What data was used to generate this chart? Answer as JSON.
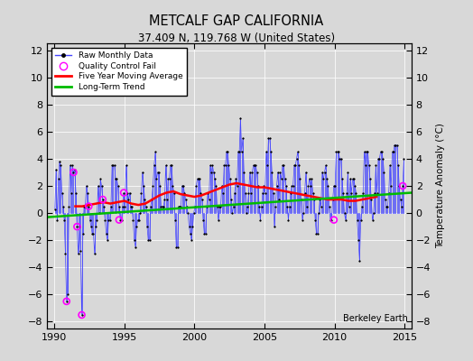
{
  "title": "METCALF GAP CALIFORNIA",
  "subtitle": "37.409 N, 119.768 W (United States)",
  "credit": "Berkeley Earth",
  "ylabel": "Temperature Anomaly (°C)",
  "xlim": [
    1989.5,
    2015.5
  ],
  "ylim": [
    -8.5,
    12.5
  ],
  "yticks": [
    -8,
    -6,
    -4,
    -2,
    0,
    2,
    4,
    6,
    8,
    10,
    12
  ],
  "xticks": [
    1990,
    1995,
    2000,
    2005,
    2010,
    2015
  ],
  "background_color": "#d8d8d8",
  "plot_background": "#d8d8d8",
  "raw_color": "#4444ff",
  "moving_avg_color": "#ff0000",
  "trend_color": "#00bb00",
  "qc_fail_color": "#ff00ff",
  "raw_data": {
    "years": [
      1990.042,
      1990.125,
      1990.208,
      1990.292,
      1990.375,
      1990.458,
      1990.542,
      1990.625,
      1990.708,
      1990.792,
      1990.875,
      1990.958,
      1991.042,
      1991.125,
      1991.208,
      1991.292,
      1991.375,
      1991.458,
      1991.542,
      1991.625,
      1991.708,
      1991.792,
      1991.875,
      1991.958,
      1992.042,
      1992.125,
      1992.208,
      1992.292,
      1992.375,
      1992.458,
      1992.542,
      1992.625,
      1992.708,
      1992.792,
      1992.875,
      1992.958,
      1993.042,
      1993.125,
      1993.208,
      1993.292,
      1993.375,
      1993.458,
      1993.542,
      1993.625,
      1993.708,
      1993.792,
      1993.875,
      1993.958,
      1994.042,
      1994.125,
      1994.208,
      1994.292,
      1994.375,
      1994.458,
      1994.542,
      1994.625,
      1994.708,
      1994.792,
      1994.875,
      1994.958,
      1995.042,
      1995.125,
      1995.208,
      1995.292,
      1995.375,
      1995.458,
      1995.542,
      1995.625,
      1995.708,
      1995.792,
      1995.875,
      1995.958,
      1996.042,
      1996.125,
      1996.208,
      1996.292,
      1996.375,
      1996.458,
      1996.542,
      1996.625,
      1996.708,
      1996.792,
      1996.875,
      1996.958,
      1997.042,
      1997.125,
      1997.208,
      1997.292,
      1997.375,
      1997.458,
      1997.542,
      1997.625,
      1997.708,
      1997.792,
      1997.875,
      1997.958,
      1998.042,
      1998.125,
      1998.208,
      1998.292,
      1998.375,
      1998.458,
      1998.542,
      1998.625,
      1998.708,
      1998.792,
      1998.875,
      1998.958,
      1999.042,
      1999.125,
      1999.208,
      1999.292,
      1999.375,
      1999.458,
      1999.542,
      1999.625,
      1999.708,
      1999.792,
      1999.875,
      1999.958,
      2000.042,
      2000.125,
      2000.208,
      2000.292,
      2000.375,
      2000.458,
      2000.542,
      2000.625,
      2000.708,
      2000.792,
      2000.875,
      2000.958,
      2001.042,
      2001.125,
      2001.208,
      2001.292,
      2001.375,
      2001.458,
      2001.542,
      2001.625,
      2001.708,
      2001.792,
      2001.875,
      2001.958,
      2002.042,
      2002.125,
      2002.208,
      2002.292,
      2002.375,
      2002.458,
      2002.542,
      2002.625,
      2002.708,
      2002.792,
      2002.875,
      2002.958,
      2003.042,
      2003.125,
      2003.208,
      2003.292,
      2003.375,
      2003.458,
      2003.542,
      2003.625,
      2003.708,
      2003.792,
      2003.875,
      2003.958,
      2004.042,
      2004.125,
      2004.208,
      2004.292,
      2004.375,
      2004.458,
      2004.542,
      2004.625,
      2004.708,
      2004.792,
      2004.875,
      2004.958,
      2005.042,
      2005.125,
      2005.208,
      2005.292,
      2005.375,
      2005.458,
      2005.542,
      2005.625,
      2005.708,
      2005.792,
      2005.875,
      2005.958,
      2006.042,
      2006.125,
      2006.208,
      2006.292,
      2006.375,
      2006.458,
      2006.542,
      2006.625,
      2006.708,
      2006.792,
      2006.875,
      2006.958,
      2007.042,
      2007.125,
      2007.208,
      2007.292,
      2007.375,
      2007.458,
      2007.542,
      2007.625,
      2007.708,
      2007.792,
      2007.875,
      2007.958,
      2008.042,
      2008.125,
      2008.208,
      2008.292,
      2008.375,
      2008.458,
      2008.542,
      2008.625,
      2008.708,
      2008.792,
      2008.875,
      2008.958,
      2009.042,
      2009.125,
      2009.208,
      2009.292,
      2009.375,
      2009.458,
      2009.542,
      2009.625,
      2009.708,
      2009.792,
      2009.875,
      2009.958,
      2010.042,
      2010.125,
      2010.208,
      2010.292,
      2010.375,
      2010.458,
      2010.542,
      2010.625,
      2010.708,
      2010.792,
      2010.875,
      2010.958,
      2011.042,
      2011.125,
      2011.208,
      2011.292,
      2011.375,
      2011.458,
      2011.542,
      2011.625,
      2011.708,
      2011.792,
      2011.875,
      2011.958,
      2012.042,
      2012.125,
      2012.208,
      2012.292,
      2012.375,
      2012.458,
      2012.542,
      2012.625,
      2012.708,
      2012.792,
      2012.875,
      2012.958,
      2013.042,
      2013.125,
      2013.208,
      2013.292,
      2013.375,
      2013.458,
      2013.542,
      2013.625,
      2013.708,
      2013.792,
      2013.875,
      2013.958,
      2014.042,
      2014.125,
      2014.208,
      2014.292,
      2014.375,
      2014.458,
      2014.542,
      2014.625,
      2014.708,
      2014.792,
      2014.875,
      2014.958
    ],
    "values": [
      0.3,
      3.2,
      -0.5,
      2.5,
      3.8,
      3.5,
      1.5,
      0.5,
      -0.5,
      -3.0,
      -6.5,
      -6.0,
      0.5,
      3.5,
      1.5,
      3.5,
      3.0,
      3.2,
      1.5,
      -1.0,
      -3.0,
      -1.0,
      -2.8,
      -7.5,
      -1.5,
      0.5,
      0.5,
      2.0,
      1.5,
      0.5,
      -0.5,
      -1.0,
      -1.5,
      -1.5,
      -3.0,
      -1.0,
      -0.5,
      2.0,
      0.0,
      2.5,
      2.0,
      1.0,
      0.5,
      -0.5,
      -1.5,
      -2.0,
      -0.5,
      -0.5,
      0.5,
      3.5,
      3.5,
      3.5,
      2.5,
      2.5,
      2.0,
      0.5,
      -0.5,
      -0.5,
      0.5,
      1.5,
      0.5,
      3.5,
      1.5,
      1.0,
      1.5,
      0.5,
      0.5,
      -0.5,
      -2.0,
      -2.5,
      -1.0,
      -0.5,
      -0.5,
      0.0,
      1.5,
      3.0,
      2.0,
      1.0,
      0.5,
      -1.0,
      -2.0,
      -2.0,
      0.5,
      1.0,
      2.0,
      3.5,
      4.5,
      2.5,
      3.0,
      3.0,
      2.0,
      0.5,
      0.5,
      0.5,
      1.0,
      3.5,
      1.0,
      2.5,
      2.5,
      3.5,
      3.5,
      2.0,
      1.5,
      -0.5,
      -2.5,
      -2.5,
      0.5,
      0.5,
      0.5,
      2.0,
      2.0,
      1.5,
      1.0,
      0.5,
      0.0,
      -1.0,
      -1.5,
      -2.0,
      -1.0,
      0.0,
      0.5,
      2.0,
      2.5,
      2.5,
      2.5,
      1.5,
      1.0,
      -0.5,
      -1.5,
      -1.5,
      0.5,
      1.5,
      1.0,
      3.5,
      3.0,
      3.5,
      3.0,
      2.5,
      2.0,
      0.5,
      -0.5,
      0.5,
      0.5,
      2.0,
      1.5,
      3.5,
      3.5,
      4.5,
      4.5,
      3.5,
      2.5,
      1.0,
      0.0,
      0.5,
      1.5,
      2.5,
      2.0,
      4.5,
      4.5,
      7.0,
      4.5,
      5.5,
      3.0,
      1.5,
      0.0,
      0.5,
      1.5,
      3.0,
      1.5,
      3.0,
      3.5,
      3.5,
      3.5,
      3.0,
      2.0,
      0.5,
      -0.5,
      0.5,
      1.5,
      2.0,
      1.5,
      4.5,
      3.5,
      5.5,
      5.5,
      4.5,
      3.0,
      1.5,
      -1.0,
      0.5,
      2.0,
      3.0,
      1.0,
      3.0,
      2.5,
      3.5,
      3.5,
      2.5,
      2.0,
      0.5,
      -0.5,
      0.5,
      1.5,
      2.0,
      2.0,
      3.5,
      3.5,
      4.0,
      4.5,
      3.5,
      2.5,
      1.0,
      -0.5,
      0.0,
      1.5,
      3.0,
      0.5,
      2.0,
      2.5,
      2.0,
      2.5,
      1.5,
      1.0,
      -0.5,
      -1.5,
      -1.5,
      0.0,
      1.0,
      0.5,
      3.0,
      2.5,
      3.0,
      3.5,
      2.5,
      2.0,
      0.5,
      -0.5,
      -0.5,
      1.0,
      2.0,
      2.0,
      4.5,
      4.5,
      4.5,
      4.0,
      4.0,
      2.5,
      1.5,
      0.0,
      -0.5,
      1.5,
      3.0,
      0.5,
      2.5,
      1.5,
      2.5,
      2.5,
      2.0,
      1.5,
      -0.5,
      -2.0,
      -3.5,
      -0.5,
      0.5,
      1.5,
      4.5,
      3.5,
      4.5,
      4.5,
      3.5,
      2.5,
      1.0,
      -0.5,
      0.0,
      1.5,
      3.5,
      1.5,
      4.0,
      4.0,
      4.5,
      4.5,
      4.0,
      3.0,
      1.0,
      0.5,
      0.5,
      1.5,
      3.5,
      2.0,
      4.5,
      4.5,
      5.0,
      5.0,
      5.0,
      3.5,
      2.0,
      1.0,
      0.5,
      2.0,
      4.0
    ]
  },
  "qc_fail_points": {
    "years": [
      1990.875,
      1991.375,
      1991.625,
      1991.958,
      1992.458,
      1993.458,
      1994.625,
      1994.958,
      2009.958,
      2014.875
    ],
    "values": [
      -6.5,
      3.0,
      -1.0,
      -7.5,
      0.5,
      1.0,
      -0.5,
      1.5,
      -0.5,
      2.0
    ]
  },
  "moving_avg": {
    "years": [
      1991.5,
      1992.0,
      1992.5,
      1993.0,
      1993.5,
      1994.0,
      1994.5,
      1995.0,
      1995.5,
      1996.0,
      1996.5,
      1997.0,
      1997.5,
      1998.0,
      1998.5,
      1999.0,
      1999.5,
      2000.0,
      2000.5,
      2001.0,
      2001.5,
      2002.0,
      2002.5,
      2003.0,
      2003.5,
      2004.0,
      2004.5,
      2005.0,
      2005.5,
      2006.0,
      2006.5,
      2007.0,
      2007.5,
      2008.0,
      2008.5,
      2009.0,
      2009.5,
      2010.0,
      2010.5,
      2011.0,
      2011.5,
      2012.0,
      2012.5,
      2013.0
    ],
    "values": [
      0.5,
      0.5,
      0.6,
      0.7,
      0.8,
      0.7,
      0.8,
      0.9,
      0.7,
      0.6,
      0.7,
      1.0,
      1.3,
      1.5,
      1.6,
      1.4,
      1.3,
      1.2,
      1.3,
      1.5,
      1.7,
      1.9,
      2.1,
      2.2,
      2.1,
      2.0,
      1.9,
      1.9,
      1.8,
      1.7,
      1.6,
      1.5,
      1.4,
      1.3,
      1.2,
      1.1,
      1.0,
      1.0,
      1.0,
      0.9,
      0.9,
      1.0,
      1.1,
      1.2
    ]
  },
  "trend": {
    "years": [
      1989.5,
      2015.5
    ],
    "values": [
      -0.3,
      1.5
    ]
  }
}
